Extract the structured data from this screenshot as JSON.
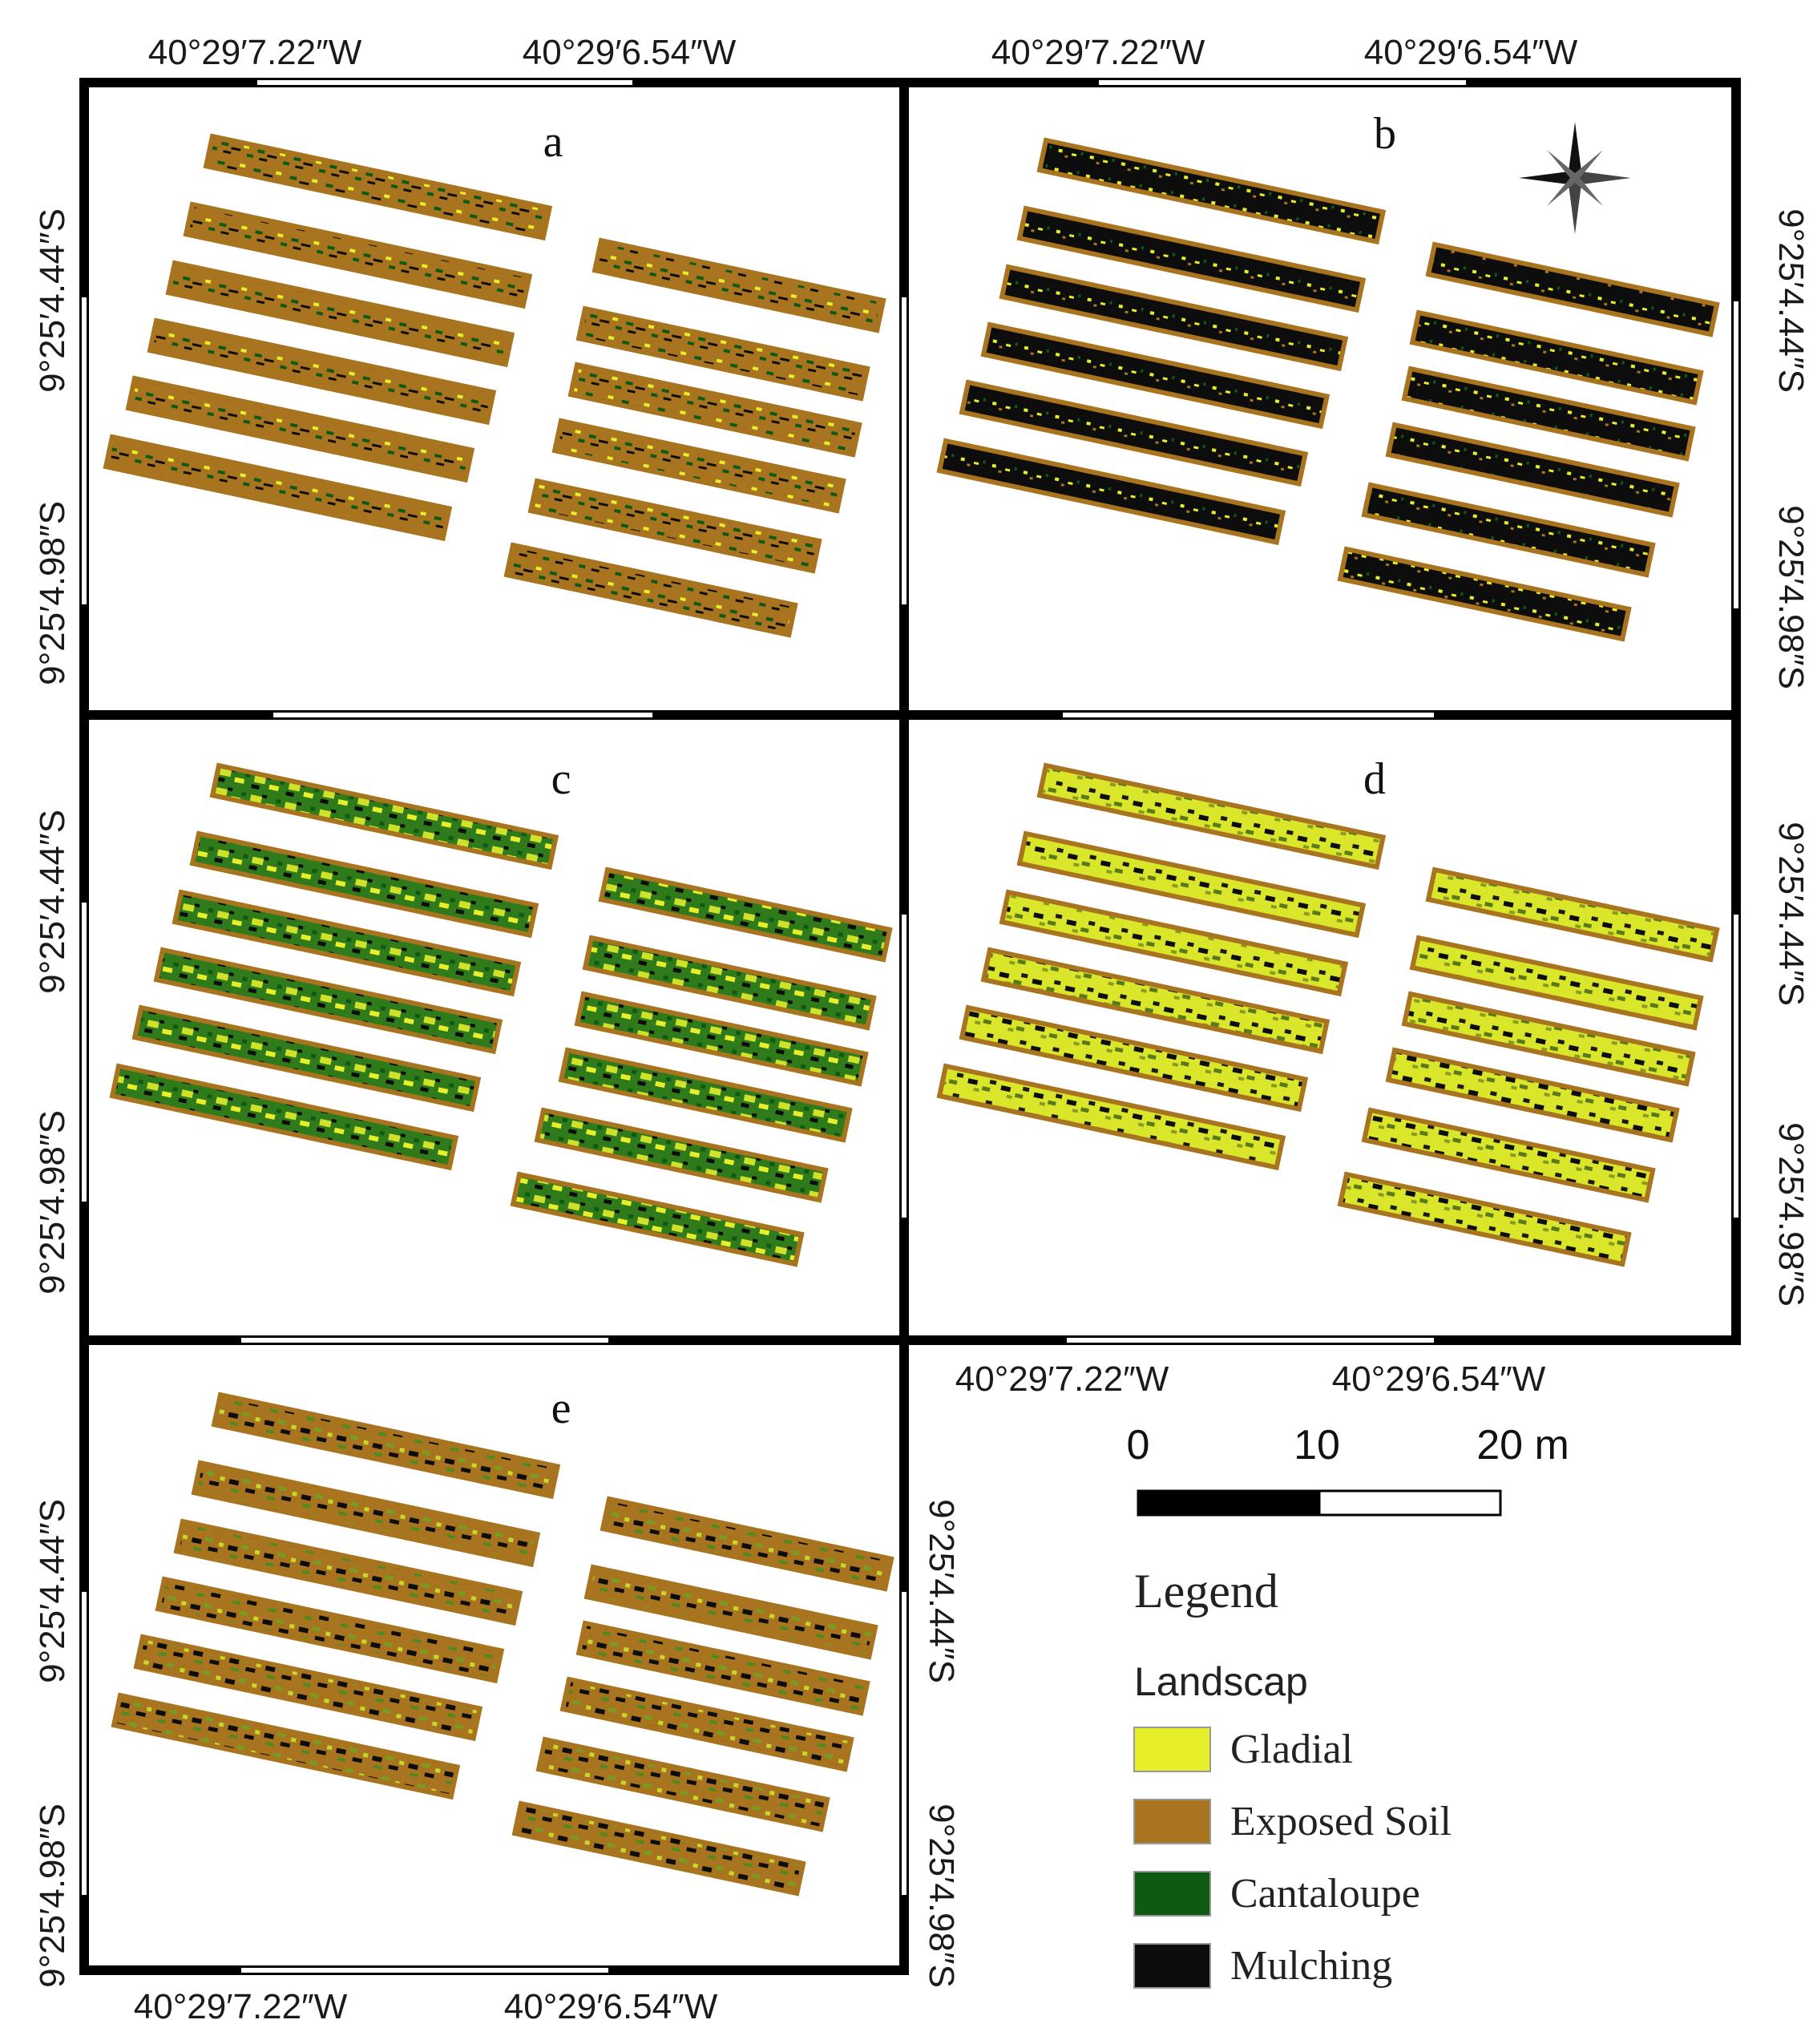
{
  "panels": [
    {
      "label": "a",
      "top_lon": [
        "40°29′7.22″W",
        "40°29′6.54″W"
      ],
      "left_lat": [
        "9°25′4.44″S",
        "9°25′4.98″S"
      ]
    },
    {
      "label": "b",
      "top_lon": [
        "40°29′7.22″W",
        "40°29′6.54″W"
      ],
      "right_lat": [
        "9°25′4.44″S",
        "9°25′4.98″S"
      ]
    },
    {
      "label": "c",
      "left_lat": [
        "9°25′4.44″S",
        "9°25′4.98″S"
      ]
    },
    {
      "label": "d",
      "bottom_lon": [
        "40°29′7.22″W",
        "40°29′6.54″W"
      ],
      "right_lat": [
        "9°25′4.44″S",
        "9°25′4.98″S"
      ]
    },
    {
      "label": "e",
      "bottom_lon": [
        "40°29′7.22″W",
        "40°29′6.54″W"
      ],
      "left_lat": [
        "9°25′4.44″S",
        "9°25′4.98″S"
      ],
      "right_lat": [
        "9°25′4.44″S",
        "9°25′4.98″S"
      ]
    }
  ],
  "scale_bar": {
    "labels": [
      "0",
      "10",
      "20 m"
    ]
  },
  "legend": {
    "title": "Legend",
    "subtitle": "Landscap",
    "items": [
      {
        "label": "Gladial",
        "color": "#e6ef2a"
      },
      {
        "label": "Exposed Soil",
        "color": "#a9741f"
      },
      {
        "label": "Cantaloupe",
        "color": "#0f5a12"
      },
      {
        "label": "Mulching",
        "color": "#0d0d0d"
      }
    ]
  },
  "north_arrow_icon": "compass-rose-icon"
}
